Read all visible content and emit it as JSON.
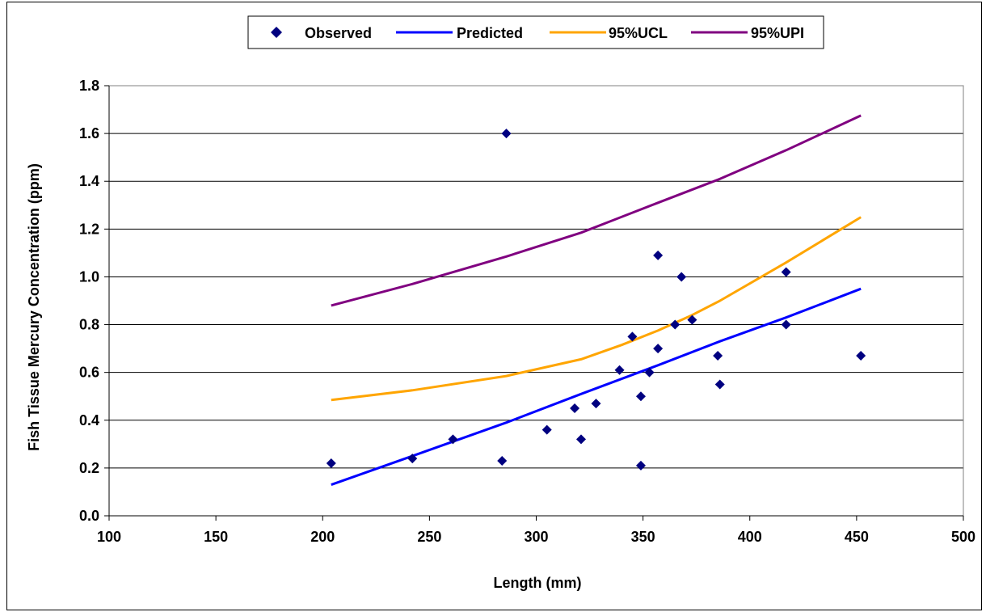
{
  "chart_data": {
    "type": "scatter",
    "xlabel": "Length (mm)",
    "ylabel": "Fish Tissue Mercury Concentration (ppm)",
    "xlim": [
      100,
      500
    ],
    "ylim": [
      0.0,
      1.8
    ],
    "xticks": [
      "100",
      "150",
      "200",
      "250",
      "300",
      "350",
      "400",
      "450",
      "500"
    ],
    "yticks": [
      "0.0",
      "0.2",
      "0.4",
      "0.6",
      "0.8",
      "1.0",
      "1.2",
      "1.4",
      "1.6",
      "1.8"
    ],
    "grid": "horizontal",
    "legend_position": "top",
    "series": [
      {
        "name": "Observed",
        "kind": "scatter",
        "color": "#000080",
        "points": [
          [
            204,
            0.22
          ],
          [
            242,
            0.24
          ],
          [
            261,
            0.32
          ],
          [
            284,
            0.23
          ],
          [
            286,
            1.6
          ],
          [
            305,
            0.36
          ],
          [
            318,
            0.45
          ],
          [
            321,
            0.32
          ],
          [
            328,
            0.47
          ],
          [
            339,
            0.61
          ],
          [
            345,
            0.75
          ],
          [
            349,
            0.5
          ],
          [
            349,
            0.21
          ],
          [
            353,
            0.6
          ],
          [
            357,
            0.7
          ],
          [
            357,
            1.09
          ],
          [
            365,
            0.8
          ],
          [
            368,
            1.0
          ],
          [
            373,
            0.82
          ],
          [
            385,
            0.67
          ],
          [
            386,
            0.55
          ],
          [
            417,
            1.02
          ],
          [
            417,
            0.8
          ],
          [
            452,
            0.67
          ]
        ]
      },
      {
        "name": "Predicted",
        "kind": "line",
        "color": "#0000ff",
        "points": [
          [
            204,
            0.13
          ],
          [
            242,
            0.25
          ],
          [
            286,
            0.39
          ],
          [
            321,
            0.51
          ],
          [
            357,
            0.63
          ],
          [
            386,
            0.73
          ],
          [
            417,
            0.83
          ],
          [
            452,
            0.95
          ]
        ]
      },
      {
        "name": "95%UCL",
        "kind": "line",
        "color": "#ffa500",
        "points": [
          [
            204,
            0.485
          ],
          [
            242,
            0.525
          ],
          [
            286,
            0.585
          ],
          [
            321,
            0.655
          ],
          [
            340,
            0.715
          ],
          [
            357,
            0.775
          ],
          [
            373,
            0.84
          ],
          [
            386,
            0.9
          ],
          [
            417,
            1.06
          ],
          [
            452,
            1.25
          ]
        ]
      },
      {
        "name": "95%UPI",
        "kind": "line",
        "color": "#800080",
        "points": [
          [
            204,
            0.88
          ],
          [
            242,
            0.97
          ],
          [
            286,
            1.085
          ],
          [
            321,
            1.185
          ],
          [
            357,
            1.31
          ],
          [
            386,
            1.41
          ],
          [
            417,
            1.53
          ],
          [
            452,
            1.675
          ]
        ]
      }
    ]
  }
}
